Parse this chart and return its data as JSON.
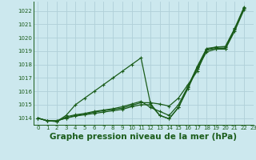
{
  "bg_color": "#cce8ee",
  "grid_color": "#b0d0d8",
  "line_color": "#1a5c1a",
  "title": "Graphe pression niveau de la mer (hPa)",
  "xlim": [
    -0.5,
    23
  ],
  "ylim": [
    1013.5,
    1022.7
  ],
  "yticks": [
    1014,
    1015,
    1016,
    1017,
    1018,
    1019,
    1020,
    1021,
    1022
  ],
  "xticks": [
    0,
    1,
    2,
    3,
    4,
    5,
    6,
    7,
    8,
    9,
    10,
    11,
    12,
    13,
    14,
    15,
    16,
    17,
    18,
    19,
    20,
    21,
    22,
    23
  ],
  "series": [
    [
      1014.0,
      1013.8,
      1013.8,
      1014.0,
      1014.2,
      1014.3,
      1014.45,
      1014.55,
      1014.65,
      1014.75,
      1014.95,
      1015.15,
      1015.15,
      1015.05,
      1014.9,
      1015.5,
      1016.5,
      1017.5,
      1019.1,
      1019.3,
      1019.3,
      1020.65,
      1022.2
    ],
    [
      1014.0,
      1013.8,
      1013.8,
      1014.0,
      1014.15,
      1014.25,
      1014.35,
      1014.45,
      1014.55,
      1014.65,
      1014.85,
      1015.0,
      1015.0,
      1014.2,
      1013.95,
      1014.8,
      1016.2,
      1017.7,
      1018.95,
      1019.15,
      1019.15,
      1020.5,
      1022.1
    ],
    [
      1014.0,
      1013.8,
      1013.75,
      1014.1,
      1014.25,
      1014.35,
      1014.5,
      1014.6,
      1014.7,
      1014.85,
      1015.05,
      1015.25,
      1014.8,
      1014.5,
      1014.2,
      1015.0,
      1016.35,
      1017.85,
      1019.2,
      1019.3,
      1019.35,
      1020.7,
      1022.3
    ],
    [
      1014.0,
      1013.8,
      1013.75,
      1014.2,
      1015.0,
      1015.5,
      1016.0,
      1016.5,
      1017.0,
      1017.5,
      1018.0,
      1018.5,
      1015.1,
      1014.2,
      1013.95,
      1014.8,
      1016.3,
      1017.8,
      1019.1,
      1019.2,
      1019.2,
      1020.6,
      1022.2
    ]
  ],
  "marker": "+",
  "markersize": 3.5,
  "linewidth": 0.9,
  "title_fontsize": 7.5,
  "tick_fontsize": 5.0
}
